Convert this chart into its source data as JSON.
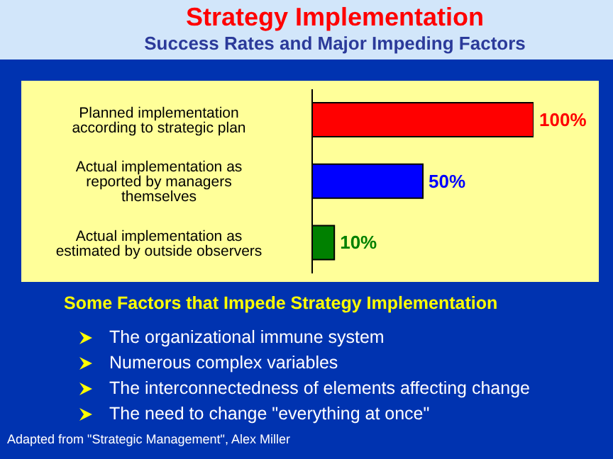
{
  "chart_data": {
    "type": "bar",
    "orientation": "horizontal",
    "title": "Strategy Implementation",
    "subtitle": "Success Rates and Major Impeding Factors",
    "categories": [
      "Planned implementation according to strategic plan",
      "Actual implementation as reported by managers themselves",
      "Actual implementation as estimated by outside observers"
    ],
    "values": [
      100,
      50,
      10
    ],
    "colors": [
      "#ff0000",
      "#0000ff",
      "#008000"
    ],
    "value_labels": [
      "100%",
      "50%",
      "10%"
    ],
    "annotations": [
      "Some Factors that Impede Strategy Implementation",
      "The organizational immune system",
      "Numerous complex variables",
      "The interconnectedness of elements affecting change",
      "The need to change \"everything at once\"",
      "Adapted from \"Strategic Management\", Alex Miller"
    ]
  }
}
